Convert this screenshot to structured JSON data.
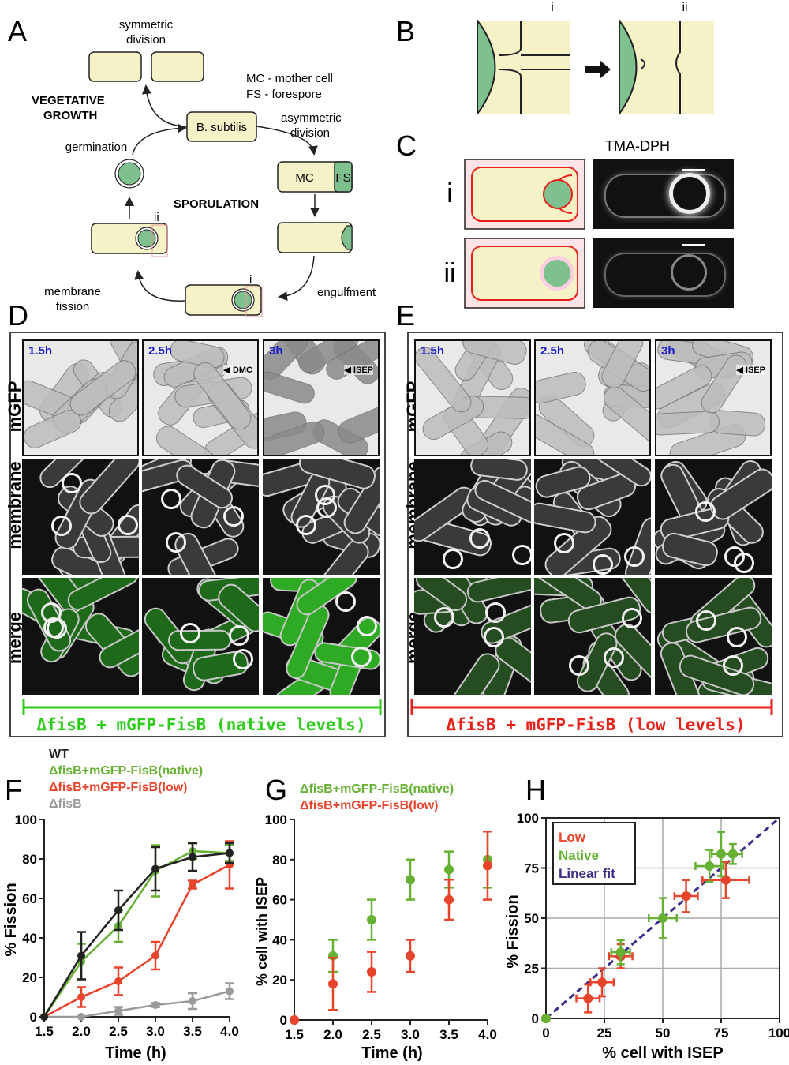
{
  "panels": {
    "A": "A",
    "B": "B",
    "C": "C",
    "D": "D",
    "E": "E",
    "F": "F",
    "G": "G",
    "H": "H"
  },
  "panelA": {
    "symmetric_division": [
      "symmetric",
      "division"
    ],
    "vegetative_growth": [
      "VEGETATIVE",
      "GROWTH"
    ],
    "legend": [
      "MC - mother cell",
      "FS  - forespore"
    ],
    "center_cell": "B. subtilis",
    "asymmetric_division": [
      "asymmetric",
      "division"
    ],
    "germination": "germination",
    "sporulation": "SPORULATION",
    "mc": "MC",
    "fs": "FS",
    "engulfment": "engulfment",
    "membrane_fission": [
      "membrane",
      "fission"
    ],
    "marker_i": "i",
    "marker_ii": "ii"
  },
  "panelB": {
    "stage_i": "i",
    "stage_ii": "ii"
  },
  "panelC": {
    "title": "TMA-DPH",
    "row_i": "i",
    "row_ii": "ii"
  },
  "panelD": {
    "times": [
      "1.5h",
      "2.5h",
      "3h"
    ],
    "rows": [
      "mGFP",
      "membrane",
      "merge"
    ],
    "annotations": {
      "dmc": "DMC",
      "isep": "ISEP"
    },
    "caption": "ΔfisB + mGFP-FisB (native levels)",
    "caption_color": "#2ecc1a"
  },
  "panelE": {
    "times": [
      "1.5h",
      "2.5h",
      "3h"
    ],
    "rows": [
      "mGFP",
      "membrane",
      "merge"
    ],
    "annotations": {
      "isep": "ISEP"
    },
    "caption": "ΔfisB + mGFP-FisB (low levels)",
    "caption_color": "#e8201a"
  },
  "colors": {
    "wt": "#222222",
    "native": "#66b032",
    "low": "#e8432b",
    "fisB": "#9a9a9a",
    "fit": "#3a2e8a"
  },
  "chart_data": [
    {
      "type": "line",
      "panel": "F",
      "legend": [
        "WT",
        "ΔfisB+mGFP-FisB(native)",
        "ΔfisB+mGFP-FisB(low)",
        "ΔfisB"
      ],
      "xlabel": "Time (h)",
      "ylabel": "% Fission",
      "xlim": [
        1.5,
        4.0
      ],
      "ylim": [
        0,
        100
      ],
      "xticks": [
        "1.5",
        "2.0",
        "2.5",
        "3.0",
        "3.5",
        "4.0"
      ],
      "yticks": [
        "0",
        "20",
        "40",
        "60",
        "80",
        "100"
      ],
      "x": [
        1.5,
        2.0,
        2.5,
        3.0,
        3.5,
        4.0
      ],
      "series": [
        {
          "name": "WT",
          "values": [
            0,
            31,
            54,
            75,
            81,
            83
          ],
          "err": [
            0,
            12,
            10,
            11,
            7,
            5
          ]
        },
        {
          "name": "ΔfisB+mGFP-FisB(native)",
          "values": [
            0,
            28,
            46,
            74,
            84,
            83
          ],
          "err": [
            0,
            9,
            8,
            13,
            4,
            4
          ]
        },
        {
          "name": "ΔfisB+mGFP-FisB(low)",
          "values": [
            0,
            10,
            18,
            31,
            67,
            77
          ],
          "err": [
            0,
            5,
            7,
            7,
            2,
            12
          ]
        },
        {
          "name": "ΔfisB",
          "values": [
            0,
            0,
            3,
            6,
            8,
            13
          ],
          "err": [
            0,
            0,
            2,
            1,
            4,
            4
          ]
        }
      ]
    },
    {
      "type": "scatter",
      "panel": "G",
      "legend": [
        "ΔfisB+mGFP-FisB(native)",
        "ΔfisB+mGFP-FisB(low)"
      ],
      "xlabel": "Time (h)",
      "ylabel": "% cell with ISEP",
      "xlim": [
        1.5,
        4.0
      ],
      "ylim": [
        0,
        100
      ],
      "xticks": [
        "1.5",
        "2.0",
        "2.5",
        "3.0",
        "3.5",
        "4.0"
      ],
      "yticks": [
        "0",
        "20",
        "40",
        "60",
        "80",
        "100"
      ],
      "x": [
        1.5,
        2.0,
        2.5,
        3.0,
        3.5,
        4.0
      ],
      "series": [
        {
          "name": "ΔfisB+mGFP-FisB(native)",
          "values": [
            0,
            32,
            50,
            70,
            75,
            80
          ],
          "err": [
            0,
            8,
            10,
            10,
            9,
            14
          ]
        },
        {
          "name": "ΔfisB+mGFP-FisB(low)",
          "values": [
            0,
            18,
            24,
            32,
            60,
            77
          ],
          "err": [
            0,
            13,
            10,
            8,
            10,
            17
          ]
        }
      ]
    },
    {
      "type": "scatter",
      "panel": "H",
      "legend": [
        "Low",
        "Native",
        "Linear fit"
      ],
      "xlabel": "% cell with ISEP",
      "ylabel": "% Fission",
      "xlim": [
        0,
        100
      ],
      "ylim": [
        0,
        100
      ],
      "xticks": [
        "0",
        "25",
        "50",
        "75",
        "100"
      ],
      "yticks": [
        "0",
        "25",
        "50",
        "75",
        "100"
      ],
      "grid": true,
      "series": [
        {
          "name": "Low",
          "x": [
            0,
            18,
            24,
            32,
            60,
            77
          ],
          "y": [
            0,
            10,
            18,
            31,
            61,
            69
          ],
          "xerr": [
            0,
            5,
            5,
            5,
            5,
            10
          ],
          "yerr": [
            0,
            7,
            7,
            6,
            8,
            9
          ]
        },
        {
          "name": "Native",
          "x": [
            0,
            32,
            50,
            70,
            75,
            80
          ],
          "y": [
            0,
            33,
            50,
            76,
            82,
            82
          ],
          "xerr": [
            0,
            4,
            6,
            6,
            4,
            4
          ],
          "yerr": [
            0,
            6,
            10,
            8,
            11,
            5
          ]
        }
      ],
      "fit": {
        "name": "Linear fit",
        "x": [
          0,
          100
        ],
        "y": [
          0,
          100
        ]
      }
    }
  ]
}
